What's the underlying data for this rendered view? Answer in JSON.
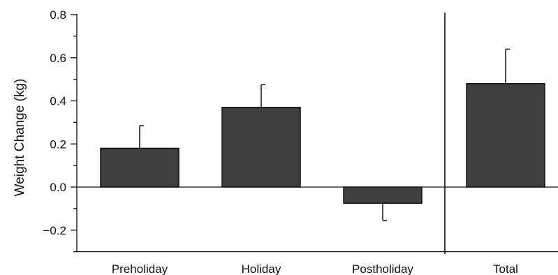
{
  "chart_data": {
    "type": "bar",
    "categories": [
      "Preholiday",
      "Holiday",
      "Postholiday",
      "Total"
    ],
    "values": [
      0.18,
      0.37,
      -0.075,
      0.48
    ],
    "error_upper": [
      0.285,
      0.475,
      -0.155,
      0.64
    ],
    "xlabel": "",
    "ylabel": "Weight Change (kg)",
    "ylim": [
      -0.3,
      0.8
    ],
    "yticks": [
      -0.2,
      0.0,
      0.2,
      0.4,
      0.6,
      0.8
    ],
    "ytick_labels": [
      "−0.2",
      "0.0",
      "0.2",
      "0.4",
      "0.6",
      "0.8"
    ],
    "bar_color": "#3f3f3f",
    "separator_after_category": "Postholiday",
    "grid": false,
    "legend": "none"
  }
}
